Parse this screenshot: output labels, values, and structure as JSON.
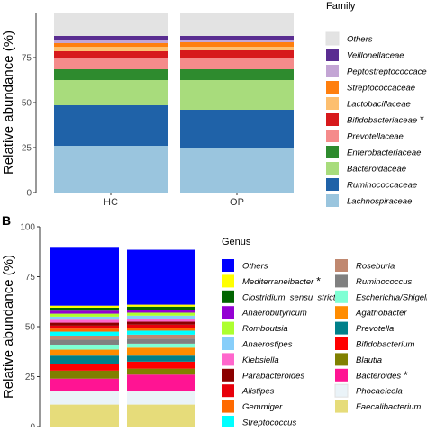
{
  "chart_data": [
    {
      "panel_label": "",
      "type": "stacked-bar",
      "ylabel": "Relative abundance (%)",
      "xlabel": "",
      "ylim": [
        0,
        100
      ],
      "yticks": [
        0,
        25,
        50,
        75
      ],
      "ytick_labels": [
        "0",
        "25",
        "50",
        "75"
      ],
      "categories": [
        "HC",
        "OP"
      ],
      "legend_title": "Family",
      "legend_position": "right",
      "series": [
        {
          "name": "Lachnospiraceae",
          "color": "#9ac5de",
          "values": [
            26,
            24.5
          ]
        },
        {
          "name": "Ruminococcaceae",
          "color": "#1f62a8",
          "values": [
            22.5,
            21.5
          ]
        },
        {
          "name": "Bacteroidaceae",
          "color": "#a8dc7c",
          "values": [
            14,
            16.5
          ]
        },
        {
          "name": "Enterobacteriaceae",
          "color": "#2e8b2e",
          "values": [
            6,
            6
          ]
        },
        {
          "name": "Prevotellaceae",
          "color": "#f58b8b",
          "values": [
            6.5,
            6
          ]
        },
        {
          "name": "Bifidobacteriaceae",
          "color": "#d7191c",
          "values": [
            3.5,
            4.5
          ]
        },
        {
          "name": "Lactobacillaceae",
          "color": "#fdbf6f",
          "values": [
            2.5,
            2
          ]
        },
        {
          "name": "Streptococcaceae",
          "color": "#ff7f0e",
          "values": [
            2,
            2.5
          ]
        },
        {
          "name": "Peptostreptococcaceae",
          "color": "#c3a5d4",
          "values": [
            2,
            1.5
          ]
        },
        {
          "name": "Veillonellaceae",
          "color": "#5a2d91",
          "values": [
            2,
            2
          ]
        },
        {
          "name": "Others",
          "color": "#e3e3e3",
          "values": [
            13,
            13
          ]
        }
      ],
      "legend_items": [
        {
          "name": "Others",
          "color": "#e3e3e3",
          "star": ""
        },
        {
          "name": "Veillonellaceae",
          "color": "#5a2d91",
          "star": ""
        },
        {
          "name": "Peptostreptococcaceae",
          "color": "#c3a5d4",
          "star": ""
        },
        {
          "name": "Streptococcaceae",
          "color": "#ff7f0e",
          "star": ""
        },
        {
          "name": "Lactobacillaceae",
          "color": "#fdbf6f",
          "star": ""
        },
        {
          "name": "Bifidobacteriaceae",
          "color": "#d7191c",
          "star": "*"
        },
        {
          "name": "Prevotellaceae",
          "color": "#f58b8b",
          "star": ""
        },
        {
          "name": "Enterobacteriaceae",
          "color": "#2e8b2e",
          "star": ""
        },
        {
          "name": "Bacteroidaceae",
          "color": "#a8dc7c",
          "star": ""
        },
        {
          "name": "Ruminococcaceae",
          "color": "#1f62a8",
          "star": ""
        },
        {
          "name": "Lachnospiraceae",
          "color": "#9ac5de",
          "star": ""
        }
      ]
    },
    {
      "panel_label": "B",
      "type": "stacked-bar",
      "ylabel": "Relative abundance (%)",
      "xlabel": "",
      "ylim": [
        0,
        100
      ],
      "yticks": [
        0,
        25,
        50,
        75,
        100
      ],
      "ytick_labels": [
        "0",
        "25",
        "50",
        "75",
        "100"
      ],
      "categories": [
        "",
        ""
      ],
      "legend_title": "Genus",
      "legend_position": "right",
      "series": [
        {
          "name": "Faecalibacterium",
          "color": "#e6dc7a",
          "values": [
            11,
            11
          ]
        },
        {
          "name": "Phocaeicola",
          "color": "#eaf3f8",
          "values": [
            7,
            7
          ]
        },
        {
          "name": "Bacteroides",
          "color": "#ff1493",
          "values": [
            6,
            8
          ]
        },
        {
          "name": "Blautia",
          "color": "#808000",
          "values": [
            4,
            3
          ]
        },
        {
          "name": "Bifidobacterium",
          "color": "#ff0000",
          "values": [
            3.5,
            3.5
          ]
        },
        {
          "name": "Prevotella",
          "color": "#00808a",
          "values": [
            4,
            3
          ]
        },
        {
          "name": "Agathobacter",
          "color": "#ff8c00",
          "values": [
            3,
            4
          ]
        },
        {
          "name": "Escherichia/Shigella",
          "color": "#7fffd4",
          "values": [
            2.5,
            2
          ]
        },
        {
          "name": "Ruminococcus",
          "color": "#808080",
          "values": [
            2.5,
            2.5
          ]
        },
        {
          "name": "Roseburia",
          "color": "#c08870",
          "values": [
            2,
            2
          ]
        },
        {
          "name": "Streptococcus",
          "color": "#00ffff",
          "values": [
            2,
            2
          ]
        },
        {
          "name": "Gemmiger",
          "color": "#ff6a00",
          "values": [
            1.5,
            1.5
          ]
        },
        {
          "name": "Alistipes",
          "color": "#e8000b",
          "values": [
            1.5,
            1.5
          ]
        },
        {
          "name": "Parabacteroides",
          "color": "#8b0000",
          "values": [
            1.5,
            1.5
          ]
        },
        {
          "name": "Klebsiella",
          "color": "#ff66cc",
          "values": [
            1.5,
            1.5
          ]
        },
        {
          "name": "Anaerostipes",
          "color": "#87cefa",
          "values": [
            1.5,
            1.5
          ]
        },
        {
          "name": "Romboutsia",
          "color": "#adff2f",
          "values": [
            1.5,
            1.5
          ]
        },
        {
          "name": "Anaerobutyricum",
          "color": "#9400d3",
          "values": [
            1.5,
            1.5
          ]
        },
        {
          "name": "Clostridium_sensu_stricto",
          "color": "#006400",
          "values": [
            1.5,
            1.5
          ]
        },
        {
          "name": "Mediterraneibacter",
          "color": "#ffff00",
          "values": [
            1,
            1
          ]
        },
        {
          "name": "Others",
          "color": "#0000ff",
          "values": [
            29,
            27.5
          ]
        }
      ],
      "legend_col1": [
        {
          "name": "Others",
          "color": "#0000ff",
          "star": ""
        },
        {
          "name": "Mediterraneibacter",
          "color": "#ffff00",
          "star": "*"
        },
        {
          "name": "Clostridium_sensu_stricto",
          "color": "#006400",
          "star": "*"
        },
        {
          "name": "Anaerobutyricum",
          "color": "#9400d3",
          "star": ""
        },
        {
          "name": "Romboutsia",
          "color": "#adff2f",
          "star": ""
        },
        {
          "name": "Anaerostipes",
          "color": "#87cefa",
          "star": ""
        },
        {
          "name": "Klebsiella",
          "color": "#ff66cc",
          "star": ""
        },
        {
          "name": "Parabacteroides",
          "color": "#8b0000",
          "star": ""
        },
        {
          "name": "Alistipes",
          "color": "#e8000b",
          "star": ""
        },
        {
          "name": "Gemmiger",
          "color": "#ff6a00",
          "star": ""
        },
        {
          "name": "Streptococcus",
          "color": "#00ffff",
          "star": ""
        }
      ],
      "legend_col2": [
        {
          "name": "Roseburia",
          "color": "#c08870",
          "star": ""
        },
        {
          "name": "Ruminococcus",
          "color": "#808080",
          "star": ""
        },
        {
          "name": "Escherichia/Shigella",
          "color": "#7fffd4",
          "star": ""
        },
        {
          "name": "Agathobacter",
          "color": "#ff8c00",
          "star": ""
        },
        {
          "name": "Prevotella",
          "color": "#00808a",
          "star": ""
        },
        {
          "name": "Bifidobacterium",
          "color": "#ff0000",
          "star": ""
        },
        {
          "name": "Blautia",
          "color": "#808000",
          "star": ""
        },
        {
          "name": "Bacteroides",
          "color": "#ff1493",
          "star": "*"
        },
        {
          "name": "Phocaeicola",
          "color": "#eaf3f8",
          "star": ""
        },
        {
          "name": "Faecalibacterium",
          "color": "#e6dc7a",
          "star": ""
        }
      ]
    }
  ]
}
